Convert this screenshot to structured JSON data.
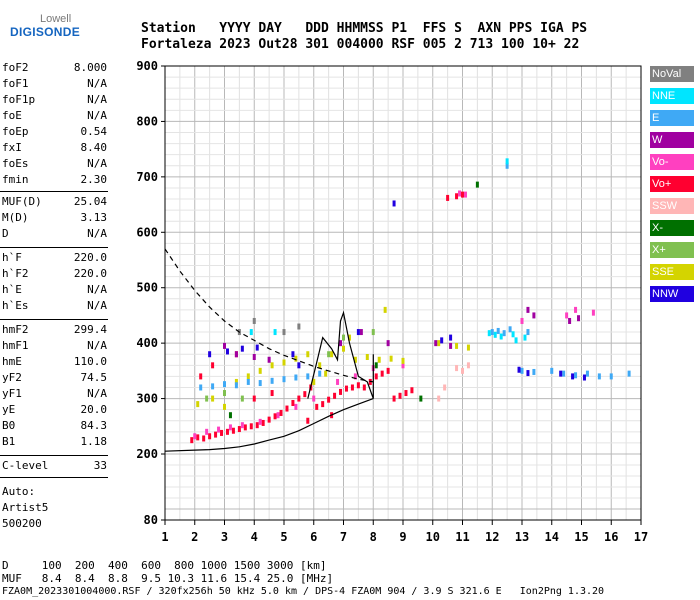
{
  "logo": {
    "line1": "Lowell",
    "line2": "DIGISONDE"
  },
  "header": {
    "labels": "Station   YYYY DAY   DDD HHMMSS P1  FFS S  AXN PPS IGA PS",
    "values": "Fortaleza 2023 Out28 301 004000 RSF 005 2 713 100 10+ 22"
  },
  "parameters": [
    {
      "name": "foF2",
      "value": "8.000"
    },
    {
      "name": "foF1",
      "value": "N/A"
    },
    {
      "name": "foF1p",
      "value": "N/A"
    },
    {
      "name": "foE",
      "value": "N/A"
    },
    {
      "name": "foEp",
      "value": "0.54"
    },
    {
      "name": "fxI",
      "value": "8.40"
    },
    {
      "name": "foEs",
      "value": "N/A"
    },
    {
      "name": "fmin",
      "value": "2.30"
    },
    {
      "name": "MUF(D)",
      "value": "25.04"
    },
    {
      "name": "M(D)",
      "value": "3.13"
    },
    {
      "name": "D",
      "value": "N/A"
    },
    {
      "name": "h`F",
      "value": "220.0"
    },
    {
      "name": "h`F2",
      "value": "220.0"
    },
    {
      "name": "h`E",
      "value": "N/A"
    },
    {
      "name": "h`Es",
      "value": "N/A"
    },
    {
      "name": "hmF2",
      "value": "299.4"
    },
    {
      "name": "hmF1",
      "value": "N/A"
    },
    {
      "name": "hmE",
      "value": "110.0"
    },
    {
      "name": "yF2",
      "value": "74.5"
    },
    {
      "name": "yF1",
      "value": "N/A"
    },
    {
      "name": "yE",
      "value": "20.0"
    },
    {
      "name": "B0",
      "value": "84.3"
    },
    {
      "name": "B1",
      "value": "1.18"
    },
    {
      "name": "C-level",
      "value": "33"
    }
  ],
  "auto": {
    "line1": "Auto:",
    "line2": "Artist5",
    "line3": "500200"
  },
  "legend": [
    {
      "label": "NoVal",
      "bg": "#808080",
      "fg": "#ffffff"
    },
    {
      "label": "NNE",
      "bg": "#00e5ff",
      "fg": "#ffffff"
    },
    {
      "label": "E",
      "bg": "#3fa9f5",
      "fg": "#ffffff"
    },
    {
      "label": "W",
      "bg": "#a000a0",
      "fg": "#ffffff"
    },
    {
      "label": "Vo-",
      "bg": "#ff40c0",
      "fg": "#ffffff"
    },
    {
      "label": "Vo+",
      "bg": "#ff0030",
      "fg": "#ffffff"
    },
    {
      "label": "SSW",
      "bg": "#ffb6b6",
      "fg": "#ffffff"
    },
    {
      "label": "X-",
      "bg": "#007000",
      "fg": "#ffffff"
    },
    {
      "label": "X+",
      "bg": "#80c050",
      "fg": "#ffffff"
    },
    {
      "label": "SSE",
      "bg": "#d4d400",
      "fg": "#ffffff"
    },
    {
      "label": "NNW",
      "bg": "#2000e0",
      "fg": "#ffffff"
    }
  ],
  "bottom": {
    "line1": "D     100  200  400  600  800 1000 1500 3000 [km]",
    "line2": "MUF   8.4  8.4  8.8  9.5 10.3 11.6 15.4 25.0 [MHz]",
    "line3": "FZA0M_2023301004000.RSF / 320fx256h 50 kHz 5.0 km / DPS-4 FZA0M 904 / 3.9 S 321.6 E   Ion2Png 1.3.20"
  },
  "chart_data": {
    "type": "scatter",
    "title": "",
    "xlabel": "",
    "ylabel": "",
    "xlim": [
      1,
      17
    ],
    "ylim": [
      80,
      900
    ],
    "x_ticks": [
      "1",
      "2",
      "3",
      "4",
      "5",
      "6",
      "7",
      "8",
      "9",
      "10",
      "11",
      "12",
      "13",
      "14",
      "15",
      "16",
      "17"
    ],
    "y_ticks": [
      "80",
      "200",
      "300",
      "400",
      "500",
      "600",
      "700",
      "800",
      "900"
    ],
    "grid": true,
    "series": [
      {
        "name": "Vo+",
        "color": "#ff0030",
        "points": [
          [
            1.9,
            225
          ],
          [
            2.1,
            230
          ],
          [
            2.3,
            228
          ],
          [
            2.5,
            232
          ],
          [
            2.7,
            235
          ],
          [
            2.9,
            238
          ],
          [
            3.1,
            240
          ],
          [
            3.3,
            242
          ],
          [
            3.5,
            245
          ],
          [
            3.7,
            248
          ],
          [
            3.9,
            250
          ],
          [
            4.1,
            252
          ],
          [
            4.3,
            256
          ],
          [
            4.5,
            262
          ],
          [
            4.7,
            268
          ],
          [
            4.9,
            274
          ],
          [
            5.1,
            282
          ],
          [
            5.3,
            292
          ],
          [
            5.5,
            300
          ],
          [
            5.7,
            308
          ],
          [
            5.9,
            320
          ],
          [
            6.1,
            285
          ],
          [
            6.3,
            290
          ],
          [
            6.5,
            298
          ],
          [
            6.7,
            305
          ],
          [
            6.9,
            312
          ],
          [
            7.1,
            318
          ],
          [
            7.3,
            320
          ],
          [
            7.5,
            324
          ],
          [
            7.7,
            320
          ],
          [
            7.9,
            330
          ],
          [
            8.1,
            340
          ],
          [
            8.3,
            345
          ],
          [
            8.5,
            350
          ],
          [
            8.7,
            300
          ],
          [
            8.9,
            305
          ],
          [
            9.1,
            310
          ],
          [
            9.3,
            315
          ],
          [
            2.2,
            340
          ],
          [
            2.6,
            360
          ],
          [
            3.4,
            380
          ],
          [
            4.0,
            300
          ],
          [
            4.6,
            310
          ],
          [
            5.8,
            260
          ],
          [
            6.6,
            270
          ],
          [
            11.0,
            668
          ],
          [
            10.8,
            665
          ],
          [
            10.5,
            662
          ]
        ]
      },
      {
        "name": "Vo-",
        "color": "#ff40c0",
        "points": [
          [
            2.0,
            232
          ],
          [
            2.4,
            240
          ],
          [
            2.8,
            244
          ],
          [
            3.2,
            248
          ],
          [
            3.6,
            252
          ],
          [
            4.2,
            258
          ],
          [
            4.8,
            270
          ],
          [
            5.4,
            285
          ],
          [
            6.0,
            300
          ],
          [
            6.8,
            330
          ],
          [
            7.4,
            340
          ],
          [
            8.0,
            355
          ],
          [
            9.0,
            360
          ],
          [
            10.9,
            670
          ],
          [
            11.1,
            668
          ],
          [
            13.0,
            440
          ],
          [
            14.5,
            450
          ],
          [
            14.8,
            460
          ],
          [
            15.4,
            455
          ]
        ]
      },
      {
        "name": "SSE",
        "color": "#d4d400",
        "points": [
          [
            2.1,
            290
          ],
          [
            2.6,
            300
          ],
          [
            3.0,
            285
          ],
          [
            3.4,
            330
          ],
          [
            3.8,
            340
          ],
          [
            4.2,
            350
          ],
          [
            4.6,
            360
          ],
          [
            5.0,
            365
          ],
          [
            5.4,
            372
          ],
          [
            5.8,
            380
          ],
          [
            6.2,
            360
          ],
          [
            6.6,
            380
          ],
          [
            7.0,
            390
          ],
          [
            7.4,
            370
          ],
          [
            7.8,
            375
          ],
          [
            8.2,
            370
          ],
          [
            8.6,
            372
          ],
          [
            9.0,
            368
          ],
          [
            10.2,
            400
          ],
          [
            10.8,
            395
          ],
          [
            11.2,
            392
          ],
          [
            6.0,
            330
          ],
          [
            6.4,
            345
          ],
          [
            7.2,
            410
          ],
          [
            8.4,
            460
          ]
        ]
      },
      {
        "name": "E",
        "color": "#3fa9f5",
        "points": [
          [
            2.2,
            320
          ],
          [
            2.6,
            322
          ],
          [
            3.0,
            326
          ],
          [
            3.4,
            324
          ],
          [
            3.8,
            330
          ],
          [
            4.2,
            328
          ],
          [
            4.6,
            332
          ],
          [
            5.0,
            335
          ],
          [
            5.4,
            338
          ],
          [
            5.8,
            340
          ],
          [
            6.2,
            345
          ],
          [
            12.0,
            420
          ],
          [
            12.2,
            422
          ],
          [
            12.4,
            418
          ],
          [
            12.6,
            425
          ],
          [
            13.0,
            350
          ],
          [
            13.4,
            348
          ],
          [
            14.0,
            350
          ],
          [
            14.4,
            345
          ],
          [
            14.8,
            342
          ],
          [
            15.2,
            345
          ],
          [
            15.6,
            340
          ],
          [
            16.0,
            340
          ],
          [
            16.6,
            345
          ],
          [
            13.2,
            420
          ],
          [
            12.5,
            720
          ]
        ]
      },
      {
        "name": "NNE",
        "color": "#00e5ff",
        "points": [
          [
            11.9,
            418
          ],
          [
            12.1,
            415
          ],
          [
            12.3,
            412
          ],
          [
            12.7,
            416
          ],
          [
            13.1,
            410
          ],
          [
            12.5,
            728
          ],
          [
            12.8,
            405
          ],
          [
            3.9,
            420
          ],
          [
            4.7,
            420
          ]
        ]
      },
      {
        "name": "W",
        "color": "#a000a0",
        "points": [
          [
            3.0,
            395
          ],
          [
            3.4,
            380
          ],
          [
            4.0,
            375
          ],
          [
            4.5,
            370
          ],
          [
            6.9,
            400
          ],
          [
            7.6,
            420
          ],
          [
            10.1,
            400
          ],
          [
            10.6,
            395
          ],
          [
            13.2,
            460
          ],
          [
            13.4,
            450
          ],
          [
            14.6,
            440
          ],
          [
            14.9,
            445
          ],
          [
            8.5,
            400
          ]
        ]
      },
      {
        "name": "NNW",
        "color": "#2000e0",
        "points": [
          [
            2.5,
            380
          ],
          [
            3.1,
            385
          ],
          [
            3.6,
            390
          ],
          [
            4.1,
            392
          ],
          [
            5.3,
            380
          ],
          [
            7.5,
            420
          ],
          [
            10.3,
            405
          ],
          [
            10.6,
            410
          ],
          [
            12.9,
            352
          ],
          [
            13.2,
            346
          ],
          [
            14.3,
            345
          ],
          [
            14.7,
            340
          ],
          [
            15.1,
            338
          ],
          [
            8.7,
            652
          ],
          [
            5.5,
            360
          ]
        ]
      },
      {
        "name": "X-",
        "color": "#007000",
        "points": [
          [
            11.5,
            686
          ],
          [
            8.1,
            360
          ],
          [
            9.6,
            300
          ],
          [
            3.2,
            270
          ]
        ]
      },
      {
        "name": "X+",
        "color": "#80c050",
        "points": [
          [
            2.4,
            300
          ],
          [
            3.0,
            310
          ],
          [
            3.6,
            300
          ],
          [
            7.0,
            410
          ],
          [
            8.0,
            420
          ],
          [
            6.5,
            380
          ]
        ]
      },
      {
        "name": "SSW",
        "color": "#ffb6b6",
        "points": [
          [
            10.2,
            300
          ],
          [
            10.4,
            320
          ],
          [
            10.8,
            355
          ],
          [
            11.2,
            360
          ],
          [
            11.0,
            350
          ]
        ]
      },
      {
        "name": "NoVal",
        "color": "#808080",
        "points": [
          [
            3.5,
            420
          ],
          [
            4.0,
            440
          ],
          [
            5.0,
            420
          ],
          [
            5.5,
            430
          ]
        ]
      }
    ],
    "traces": [
      {
        "style": "solid",
        "points": [
          [
            1.0,
            205
          ],
          [
            2.0,
            207
          ],
          [
            2.5,
            208
          ],
          [
            3.0,
            210
          ],
          [
            3.5,
            213
          ],
          [
            4.0,
            218
          ],
          [
            4.5,
            225
          ],
          [
            5.0,
            232
          ],
          [
            5.5,
            242
          ],
          [
            6.0,
            255
          ],
          [
            6.5,
            268
          ],
          [
            7.0,
            280
          ],
          [
            7.5,
            290
          ],
          [
            8.0,
            300
          ]
        ]
      },
      {
        "style": "solid",
        "points": [
          [
            5.8,
            300
          ],
          [
            6.1,
            365
          ],
          [
            6.3,
            410
          ],
          [
            6.6,
            390
          ],
          [
            6.8,
            370
          ],
          [
            6.9,
            440
          ],
          [
            7.0,
            455
          ],
          [
            7.2,
            400
          ],
          [
            7.5,
            340
          ],
          [
            7.8,
            330
          ],
          [
            8.0,
            300
          ],
          [
            8.0,
            380
          ]
        ]
      },
      {
        "style": "dashed",
        "points": [
          [
            1.0,
            570
          ],
          [
            1.5,
            530
          ],
          [
            2.0,
            495
          ],
          [
            2.5,
            465
          ],
          [
            3.0,
            440
          ],
          [
            3.5,
            420
          ],
          [
            4.0,
            405
          ],
          [
            4.5,
            390
          ],
          [
            5.0,
            378
          ],
          [
            5.5,
            368
          ],
          [
            6.0,
            358
          ],
          [
            6.5,
            350
          ],
          [
            7.0,
            342
          ],
          [
            7.5,
            335
          ],
          [
            8.0,
            330
          ]
        ]
      }
    ]
  }
}
